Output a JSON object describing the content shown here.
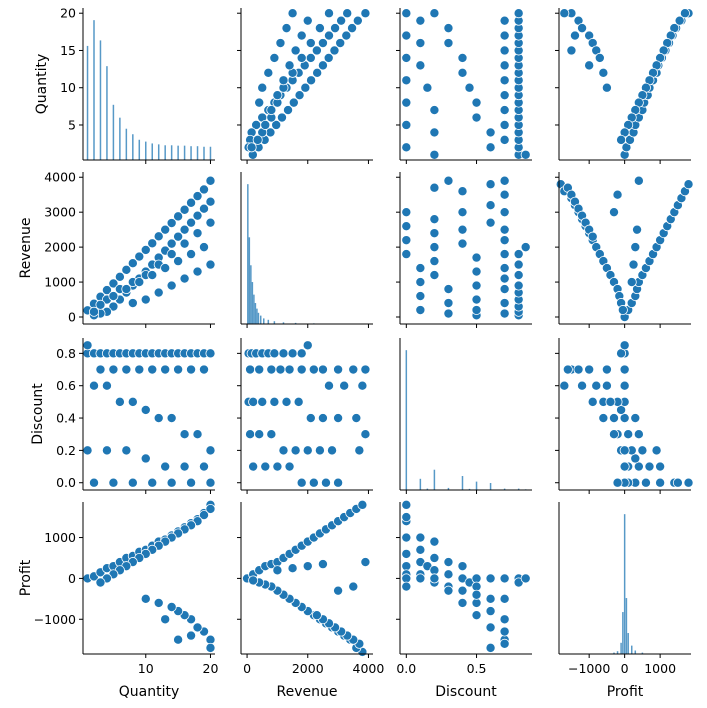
{
  "chart_data": {
    "type": "pairplot",
    "variables": [
      "Quantity",
      "Revenue",
      "Discount",
      "Profit"
    ],
    "color": "#1f77b4",
    "grid": false,
    "axes": {
      "Quantity": {
        "label": "Quantity",
        "lim": [
          0.3,
          20.7
        ],
        "ticks": [
          5,
          10,
          15,
          20
        ],
        "bottom_ticks": [
          10,
          20
        ]
      },
      "Revenue": {
        "label": "Revenue",
        "lim": [
          -200,
          4150
        ],
        "ticks": [
          0,
          1000,
          2000,
          3000,
          4000
        ],
        "bottom_ticks": [
          0,
          2000,
          4000
        ]
      },
      "Discount": {
        "label": "Discount",
        "lim": [
          -0.045,
          0.895
        ],
        "ticks": [
          0.0,
          0.2,
          0.4,
          0.6,
          0.8
        ],
        "tick_labels": [
          "0.0",
          "0.2",
          "0.4",
          "0.6",
          "0.8"
        ],
        "bottom_ticks": [
          0.0,
          0.5
        ],
        "bottom_tick_labels": [
          "0.0",
          "0.5"
        ]
      },
      "Profit": {
        "label": "Profit",
        "lim": [
          -1850,
          1870
        ],
        "ticks": [
          -1000,
          0,
          1000
        ],
        "tick_labels": [
          "−1000",
          "0",
          "1000"
        ],
        "bottom_ticks": [
          -1000,
          0,
          1000
        ],
        "bottom_tick_labels": [
          "−1000",
          "0",
          "1000"
        ]
      }
    },
    "histograms": {
      "Quantity": {
        "type": "bar",
        "x": [
          1,
          2,
          3,
          4,
          5,
          6,
          7,
          8,
          9,
          10,
          11,
          12,
          13,
          14,
          15,
          16,
          17,
          18,
          19,
          20
        ],
        "counts": [
          620,
          760,
          650,
          510,
          300,
          230,
          170,
          140,
          110,
          100,
          90,
          85,
          80,
          80,
          78,
          78,
          75,
          75,
          72,
          72
        ]
      },
      "Revenue": {
        "type": "bar",
        "x": [
          25,
          75,
          125,
          175,
          225,
          275,
          325,
          375,
          450,
          550,
          700,
          900,
          1200,
          1600,
          2200,
          3000,
          3800
        ],
        "counts": [
          1000,
          620,
          420,
          300,
          210,
          150,
          110,
          80,
          60,
          40,
          30,
          20,
          12,
          8,
          5,
          3,
          2
        ]
      },
      "Discount": {
        "type": "bar",
        "x": [
          0.0,
          0.1,
          0.15,
          0.2,
          0.3,
          0.4,
          0.45,
          0.5,
          0.6,
          0.7,
          0.8,
          0.85
        ],
        "counts": [
          1000,
          80,
          10,
          145,
          15,
          100,
          8,
          60,
          50,
          10,
          10,
          5
        ]
      },
      "Profit": {
        "type": "bar",
        "x": [
          -300,
          -200,
          -100,
          -50,
          0,
          50,
          100,
          200,
          300,
          500
        ],
        "counts": [
          10,
          20,
          80,
          300,
          1000,
          400,
          150,
          60,
          25,
          10
        ]
      }
    },
    "scatter": {
      "Revenue_vs_Quantity": {
        "x": [
          1,
          2,
          3,
          4,
          5,
          6,
          7,
          8,
          9,
          10,
          11,
          12,
          13,
          14,
          15,
          16,
          17,
          18,
          19,
          20,
          20,
          19,
          18,
          17,
          16,
          15,
          14,
          13,
          12,
          11,
          10,
          9,
          8,
          7,
          6,
          5,
          4,
          3,
          2,
          2,
          20,
          18,
          16,
          14,
          12,
          10,
          8,
          6,
          4,
          3,
          19,
          17,
          15,
          13,
          11,
          9,
          7,
          5,
          20,
          18,
          16,
          14,
          12,
          10,
          8
        ],
        "y": [
          190,
          380,
          580,
          770,
          960,
          1150,
          1350,
          1540,
          1730,
          1920,
          2110,
          2310,
          2500,
          2690,
          2880,
          3070,
          3270,
          3460,
          3650,
          3900,
          3300,
          3100,
          2900,
          2700,
          2500,
          2300,
          2100,
          1900,
          1700,
          1500,
          1300,
          1100,
          900,
          700,
          500,
          300,
          150,
          100,
          50,
          150,
          2700,
          2400,
          2100,
          1800,
          1500,
          1200,
          1000,
          800,
          500,
          350,
          2000,
          1800,
          1600,
          1400,
          1200,
          1000,
          800,
          600,
          1500,
          1300,
          1100,
          900,
          700,
          500,
          400
        ]
      },
      "Discount_vs_Quantity": {
        "x": [
          1,
          2,
          3,
          4,
          5,
          6,
          7,
          8,
          9,
          10,
          11,
          12,
          13,
          14,
          15,
          16,
          17,
          18,
          19,
          20,
          1,
          3,
          5,
          7,
          9,
          11,
          13,
          15,
          17,
          19,
          2,
          4,
          6,
          8,
          10,
          12,
          14,
          16,
          18,
          20,
          1,
          4,
          7,
          10,
          13,
          16,
          19,
          2,
          5,
          8,
          11,
          14,
          17,
          20
        ],
        "y": [
          0.8,
          0.8,
          0.8,
          0.8,
          0.8,
          0.8,
          0.8,
          0.8,
          0.8,
          0.8,
          0.8,
          0.8,
          0.8,
          0.8,
          0.8,
          0.8,
          0.8,
          0.8,
          0.8,
          0.8,
          0.85,
          0.7,
          0.7,
          0.7,
          0.7,
          0.7,
          0.7,
          0.7,
          0.7,
          0.7,
          0.6,
          0.6,
          0.5,
          0.5,
          0.45,
          0.4,
          0.4,
          0.3,
          0.3,
          0.2,
          0.2,
          0.2,
          0.2,
          0.15,
          0.1,
          0.1,
          0.1,
          0.0,
          0.0,
          0.0,
          0.0,
          0.0,
          0.0,
          0.0
        ]
      },
      "Profit_vs_Quantity": {
        "x": [
          1,
          2,
          3,
          4,
          5,
          6,
          7,
          8,
          9,
          10,
          11,
          12,
          13,
          14,
          15,
          16,
          17,
          18,
          19,
          20,
          20,
          19,
          18,
          17,
          16,
          15,
          14,
          13,
          12,
          11,
          10,
          9,
          8,
          7,
          6,
          5,
          4,
          3,
          20,
          19,
          18,
          17,
          16,
          15,
          14,
          12,
          10,
          20,
          17,
          15,
          13
        ],
        "y": [
          0,
          50,
          150,
          250,
          300,
          400,
          500,
          550,
          650,
          700,
          800,
          900,
          950,
          1050,
          1150,
          1250,
          1350,
          1450,
          1600,
          1800,
          1700,
          1550,
          1400,
          1300,
          1200,
          1100,
          1000,
          900,
          800,
          700,
          600,
          500,
          400,
          300,
          200,
          100,
          0,
          -100,
          -1500,
          -1300,
          -1200,
          -1000,
          -900,
          -800,
          -700,
          -600,
          -500,
          -1700,
          -1400,
          -1500,
          -1000
        ]
      },
      "Discount_vs_Revenue": {
        "x": [
          50,
          150,
          300,
          500,
          700,
          900,
          1200,
          1500,
          1800,
          2000,
          2500,
          3000,
          3500,
          3900,
          100,
          400,
          800,
          1100,
          1400,
          1800,
          2200,
          2700,
          3200,
          3800,
          50,
          200,
          500,
          900,
          1300,
          1700,
          2100,
          2500,
          3000,
          3600,
          3900,
          100,
          400,
          800,
          1200,
          1600,
          2000,
          2400,
          2800,
          3700,
          200,
          600,
          1000,
          1400,
          1800,
          2200,
          2600,
          3000
        ],
        "y": [
          0.8,
          0.8,
          0.8,
          0.8,
          0.8,
          0.8,
          0.8,
          0.8,
          0.8,
          0.85,
          0.7,
          0.7,
          0.7,
          0.7,
          0.7,
          0.7,
          0.7,
          0.7,
          0.7,
          0.7,
          0.7,
          0.6,
          0.6,
          0.6,
          0.5,
          0.5,
          0.5,
          0.5,
          0.5,
          0.5,
          0.4,
          0.4,
          0.4,
          0.4,
          0.3,
          0.3,
          0.3,
          0.3,
          0.2,
          0.2,
          0.2,
          0.2,
          0.2,
          0.2,
          0.1,
          0.1,
          0.1,
          0.1,
          0.0,
          0.0,
          0.0,
          0.0
        ]
      },
      "Profit_vs_Revenue": {
        "x": [
          0,
          200,
          400,
          600,
          800,
          1000,
          1200,
          1400,
          1600,
          1800,
          2000,
          2200,
          2400,
          2600,
          2800,
          3000,
          3200,
          3400,
          3600,
          3800,
          3900,
          3800,
          3600,
          3400,
          3200,
          3000,
          2800,
          2600,
          2400,
          2200,
          2000,
          1800,
          1600,
          1400,
          1200,
          1000,
          800,
          600,
          400,
          200,
          3700,
          3500,
          3300,
          3100,
          2900,
          2700,
          2500,
          2300,
          1000,
          1500,
          2000,
          2500,
          3000,
          3500
        ],
        "y": [
          0,
          100,
          200,
          300,
          350,
          400,
          500,
          600,
          700,
          800,
          900,
          1000,
          1100,
          1200,
          1300,
          1400,
          1500,
          1600,
          1700,
          1800,
          400,
          -1800,
          -1700,
          -1500,
          -1400,
          -1300,
          -1200,
          -1100,
          -1000,
          -900,
          -800,
          -700,
          -600,
          -500,
          -400,
          -300,
          -200,
          -150,
          -100,
          -50,
          -1600,
          -1500,
          -1400,
          -1300,
          -1200,
          -1100,
          -1000,
          -900,
          200,
          250,
          300,
          350,
          -300,
          -200
        ]
      },
      "Profit_vs_Discount": {
        "x": [
          0.0,
          0.0,
          0.0,
          0.0,
          0.0,
          0.0,
          0.0,
          0.0,
          0.1,
          0.1,
          0.1,
          0.1,
          0.15,
          0.2,
          0.2,
          0.2,
          0.2,
          0.3,
          0.3,
          0.3,
          0.4,
          0.4,
          0.4,
          0.45,
          0.5,
          0.5,
          0.5,
          0.6,
          0.6,
          0.6,
          0.7,
          0.7,
          0.7,
          0.7,
          0.8,
          0.8,
          0.85,
          0.6,
          0.5,
          0.4,
          0.7,
          0.7,
          0.6,
          0.5,
          0.3,
          0.2,
          0.1,
          0.0
        ],
        "y": [
          1800,
          1400,
          1000,
          600,
          300,
          100,
          0,
          -200,
          1000,
          700,
          400,
          100,
          300,
          900,
          500,
          200,
          -100,
          400,
          100,
          -200,
          300,
          0,
          -300,
          -100,
          0,
          -200,
          -600,
          0,
          -500,
          -1700,
          0,
          -500,
          -1000,
          -1500,
          0,
          -100,
          0,
          -1200,
          -900,
          -600,
          -1600,
          -1300,
          -800,
          -400,
          -300,
          0,
          0,
          1500
        ]
      },
      "Quantity_vs_Revenue": {
        "transpose_of": "Revenue_vs_Quantity"
      },
      "Quantity_vs_Discount": {
        "transpose_of": "Discount_vs_Quantity"
      },
      "Quantity_vs_Profit": {
        "transpose_of": "Profit_vs_Quantity"
      },
      "Revenue_vs_Discount": {
        "transpose_of": "Discount_vs_Revenue"
      },
      "Revenue_vs_Profit": {
        "transpose_of": "Profit_vs_Revenue"
      },
      "Discount_vs_Profit": {
        "transpose_of": "Profit_vs_Discount"
      }
    }
  }
}
